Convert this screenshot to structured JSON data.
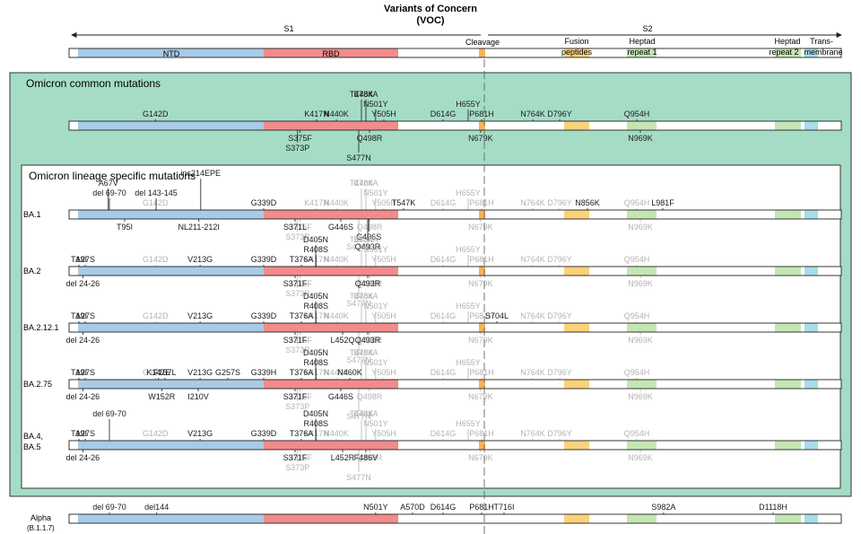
{
  "title": "Variants of Concern",
  "subtitle": "(VOC)",
  "header": {
    "s1": "S1",
    "s2": "S2",
    "cleavage": "Cleavage",
    "domains": [
      {
        "key": "ntd",
        "label": "NTD"
      },
      {
        "key": "rbd",
        "label": "RBD"
      },
      {
        "key": "fusion",
        "label": "Fusion",
        "label2": "peptides"
      },
      {
        "key": "hr1",
        "label": "Heptad",
        "label2": "repeat 1"
      },
      {
        "key": "hr2",
        "label": "Heptad",
        "label2": "repeat 2"
      },
      {
        "key": "tm",
        "label": "Trans-",
        "label2": "membrane"
      }
    ]
  },
  "panels": {
    "common_title": "Omicron common mutations",
    "lineage_title": "Omicron lineage specific mutations"
  },
  "colors": {
    "ntd": "#a8cbe6",
    "rbd": "#f28b8b",
    "cleavage": "#f7b25a",
    "fusion": "#f9d27a",
    "hr1": "#c4e6b3",
    "hr2": "#c4e6b3",
    "tm": "#a7dde9",
    "panel_bg": "#a5dcc6",
    "ghost": "#b3b3b3"
  },
  "common": {
    "above": [
      {
        "text": "G142D",
        "pos": 142,
        "lvl": 1
      },
      {
        "text": "K417N",
        "pos": 417,
        "lvl": 1
      },
      {
        "text": "N440K",
        "pos": 440,
        "lvl": 1
      },
      {
        "text": "T478K",
        "pos": 478,
        "lvl": 3
      },
      {
        "text": "E484A",
        "pos": 484,
        "lvl": 3
      },
      {
        "text": "N501Y",
        "pos": 501,
        "lvl": 2
      },
      {
        "text": "Y505H",
        "pos": 505,
        "lvl": 1
      },
      {
        "text": "D614G",
        "pos": 614,
        "lvl": 1
      },
      {
        "text": "H655Y",
        "pos": 655,
        "lvl": 2
      },
      {
        "text": "P681H",
        "pos": 681,
        "lvl": 1
      },
      {
        "text": "N764K",
        "pos": 764,
        "lvl": 1
      },
      {
        "text": "D796Y",
        "pos": 796,
        "lvl": 1
      },
      {
        "text": "Q954H",
        "pos": 954,
        "lvl": 1
      }
    ],
    "below": [
      {
        "text": "S375F",
        "pos": 375,
        "lvl": 1
      },
      {
        "text": "S373P",
        "pos": 373,
        "lvl": 2
      },
      {
        "text": "S477N",
        "pos": 477,
        "lvl": 3
      },
      {
        "text": "Q498R",
        "pos": 498,
        "lvl": 1
      },
      {
        "text": "N679K",
        "pos": 679,
        "lvl": 1
      },
      {
        "text": "N969K",
        "pos": 969,
        "lvl": 1
      }
    ]
  },
  "lineages": [
    {
      "name": "BA.1",
      "above": [
        {
          "text": "A67V",
          "pos": 67,
          "lvl": 3
        },
        {
          "text": "del 69-70",
          "pos": 69,
          "lvl": 2
        },
        {
          "text": "del 143-145",
          "pos": 143,
          "lvl": 2
        },
        {
          "text": "ins214EPE",
          "pos": 214,
          "lvl": 4
        },
        {
          "text": "G339D",
          "pos": 339,
          "lvl": 1
        },
        {
          "text": "T547K",
          "pos": 547,
          "lvl": 1
        },
        {
          "text": "N856K",
          "pos": 856,
          "lvl": 1
        },
        {
          "text": "L981F",
          "pos": 981,
          "lvl": 1
        }
      ],
      "below": [
        {
          "text": "T95I",
          "pos": 95,
          "lvl": 1
        },
        {
          "text": "NL211-212I",
          "pos": 211,
          "lvl": 1
        },
        {
          "text": "S371L",
          "pos": 371,
          "lvl": 1
        },
        {
          "text": "G446S",
          "pos": 446,
          "lvl": 1
        },
        {
          "text": "G496S",
          "pos": 496,
          "lvl": 2
        },
        {
          "text": "Q493R",
          "pos": 493,
          "lvl": 3
        }
      ]
    },
    {
      "name": "BA.2",
      "above": [
        {
          "text": "T19I",
          "pos": 19,
          "lvl": 1
        },
        {
          "text": "A27S",
          "pos": 27,
          "lvl": 1
        },
        {
          "text": "V213G",
          "pos": 213,
          "lvl": 1
        },
        {
          "text": "G339D",
          "pos": 339,
          "lvl": 1
        },
        {
          "text": "T376A",
          "pos": 376,
          "lvl": 1
        },
        {
          "text": "R408S",
          "pos": 408,
          "lvl": 2
        },
        {
          "text": "D405N",
          "pos": 405,
          "lvl": 3
        }
      ],
      "below": [
        {
          "text": "del 24-26",
          "pos": 24,
          "lvl": 1
        },
        {
          "text": "S371F",
          "pos": 371,
          "lvl": 1
        },
        {
          "text": "Q493R",
          "pos": 493,
          "lvl": 1
        }
      ]
    },
    {
      "name": "BA.2.12.1",
      "above": [
        {
          "text": "T19I",
          "pos": 19,
          "lvl": 1
        },
        {
          "text": "A27S",
          "pos": 27,
          "lvl": 1
        },
        {
          "text": "V213G",
          "pos": 213,
          "lvl": 1
        },
        {
          "text": "G339D",
          "pos": 339,
          "lvl": 1
        },
        {
          "text": "T376A",
          "pos": 376,
          "lvl": 1
        },
        {
          "text": "R408S",
          "pos": 408,
          "lvl": 2
        },
        {
          "text": "D405N",
          "pos": 405,
          "lvl": 3
        },
        {
          "text": "S704L",
          "pos": 704,
          "lvl": 1
        }
      ],
      "below": [
        {
          "text": "del 24-26",
          "pos": 24,
          "lvl": 1
        },
        {
          "text": "S371F",
          "pos": 371,
          "lvl": 1
        },
        {
          "text": "L452Q",
          "pos": 452,
          "lvl": 1
        },
        {
          "text": "Q493R",
          "pos": 493,
          "lvl": 1
        }
      ]
    },
    {
      "name": "BA.2.75",
      "above": [
        {
          "text": "T19I",
          "pos": 19,
          "lvl": 1
        },
        {
          "text": "A27S",
          "pos": 27,
          "lvl": 1
        },
        {
          "text": "K147E",
          "pos": 147,
          "lvl": 1
        },
        {
          "text": "F157L",
          "pos": 157,
          "lvl": 1
        },
        {
          "text": "V213G",
          "pos": 213,
          "lvl": 1
        },
        {
          "text": "G257S",
          "pos": 257,
          "lvl": 1
        },
        {
          "text": "G339H",
          "pos": 339,
          "lvl": 1
        },
        {
          "text": "T376A",
          "pos": 376,
          "lvl": 1
        },
        {
          "text": "R408S",
          "pos": 408,
          "lvl": 2
        },
        {
          "text": "D405N",
          "pos": 405,
          "lvl": 3
        },
        {
          "text": "N460K",
          "pos": 460,
          "lvl": 1
        }
      ],
      "below": [
        {
          "text": "del 24-26",
          "pos": 24,
          "lvl": 1
        },
        {
          "text": "W152R",
          "pos": 152,
          "lvl": 1
        },
        {
          "text": "I210V",
          "pos": 210,
          "lvl": 1
        },
        {
          "text": "S371F",
          "pos": 371,
          "lvl": 1
        },
        {
          "text": "G446S",
          "pos": 446,
          "lvl": 1
        }
      ]
    },
    {
      "name": "BA.4,",
      "name2": "BA.5",
      "above": [
        {
          "text": "T19I",
          "pos": 19,
          "lvl": 1
        },
        {
          "text": "A27S",
          "pos": 27,
          "lvl": 1
        },
        {
          "text": "del 69-70",
          "pos": 69,
          "lvl": 3
        },
        {
          "text": "V213G",
          "pos": 213,
          "lvl": 1
        },
        {
          "text": "G339D",
          "pos": 339,
          "lvl": 1
        },
        {
          "text": "T376A",
          "pos": 376,
          "lvl": 1
        },
        {
          "text": "R408S",
          "pos": 408,
          "lvl": 2
        },
        {
          "text": "D405N",
          "pos": 405,
          "lvl": 3
        }
      ],
      "below": [
        {
          "text": "del 24-26",
          "pos": 24,
          "lvl": 1
        },
        {
          "text": "S371F",
          "pos": 371,
          "lvl": 1
        },
        {
          "text": "L452R",
          "pos": 452,
          "lvl": 1
        },
        {
          "text": "F486V",
          "pos": 486,
          "lvl": 1
        }
      ]
    }
  ],
  "alpha": {
    "name": "Alpha",
    "name2": "(B.1.1.7)",
    "above": [
      {
        "text": "del 69-70",
        "pos": 69,
        "lvl": 1
      },
      {
        "text": "del144",
        "pos": 144,
        "lvl": 1
      },
      {
        "text": "N501Y",
        "pos": 501,
        "lvl": 1
      },
      {
        "text": "A570D",
        "pos": 570,
        "lvl": 1
      },
      {
        "text": "D614G",
        "pos": 614,
        "lvl": 1
      },
      {
        "text": "P681H",
        "pos": 681,
        "lvl": 1
      },
      {
        "text": "T716I",
        "pos": 716,
        "lvl": 1
      },
      {
        "text": "S982A",
        "pos": 982,
        "lvl": 1
      },
      {
        "text": "D1118H",
        "pos": 1118,
        "lvl": 1
      }
    ],
    "below": []
  }
}
